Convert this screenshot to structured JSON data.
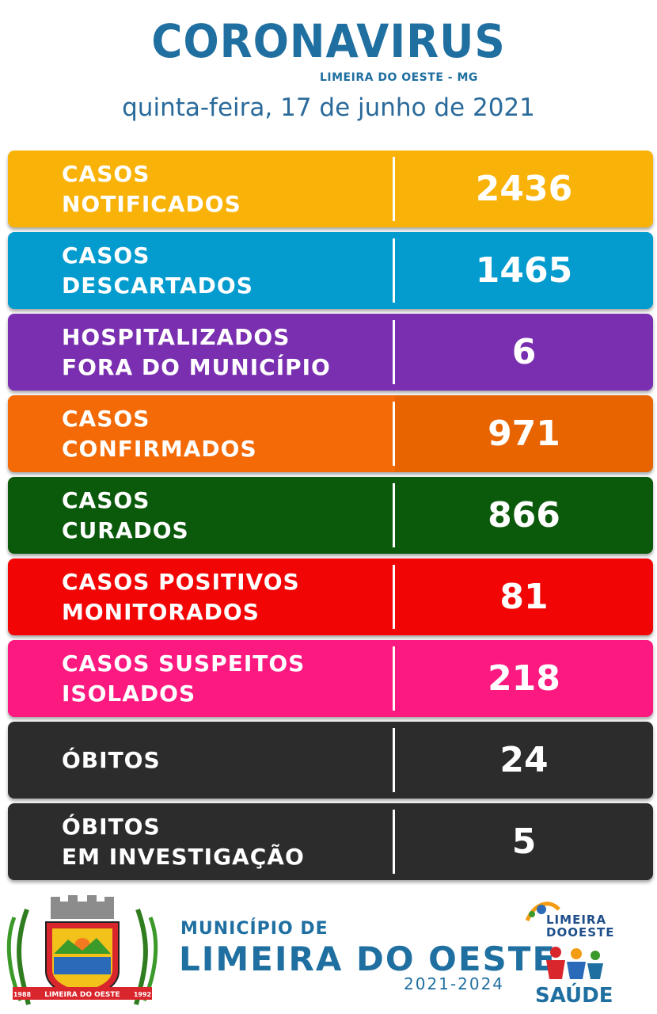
{
  "header": {
    "title": "CORONAVIRUS",
    "subtitle": "LIMEIRA DO OESTE - MG",
    "date": "quinta-feira, 17 de junho de 2021"
  },
  "rows": [
    {
      "line1": "CASOS",
      "line2": "NOTIFICADOS",
      "value": "2436",
      "color": "#f9b208"
    },
    {
      "line1": "CASOS",
      "line2": "DESCARTADOS",
      "value": "1465",
      "color": "#049ccf"
    },
    {
      "line1": "HOSPITALIZADOS",
      "line2": "FORA DO MUNICÍPIO",
      "value": "6",
      "color": "#7a2fb0"
    },
    {
      "line1": "CASOS",
      "line2": "CONFIRMADOS",
      "value": "971",
      "color": "#f36a07",
      "value_color": "#e86400"
    },
    {
      "line1": "CASOS",
      "line2": "CURADOS",
      "value": "866",
      "color": "#0b5a0c"
    },
    {
      "line1": "CASOS POSITIVOS",
      "line2": "MONITORADOS",
      "value": "81",
      "color": "#f10505"
    },
    {
      "line1": "CASOS SUSPEITOS",
      "line2": "ISOLADOS",
      "value": "218",
      "color": "#fc1a80"
    },
    {
      "line1": "",
      "line2": "ÓBITOS",
      "value": "24",
      "color": "#2c2c2c"
    },
    {
      "line1": "ÓBITOS",
      "line2": "EM INVESTIGAÇÃO",
      "value": "5",
      "color": "#2c2c2c"
    }
  ],
  "footer": {
    "municipio_small": "MUNICÍPIO DE",
    "municipio_big": "LIMEIRA DO OESTE",
    "years": "2021-2024",
    "crest_banner": "LIMEIRA DO OESTE",
    "crest_left_year": "1988",
    "crest_right_year": "1992",
    "logo_limeira_line1": "LIMEIRA",
    "logo_limeira_line2": "DOOESTE",
    "logo_saude": "SAÚDE"
  }
}
